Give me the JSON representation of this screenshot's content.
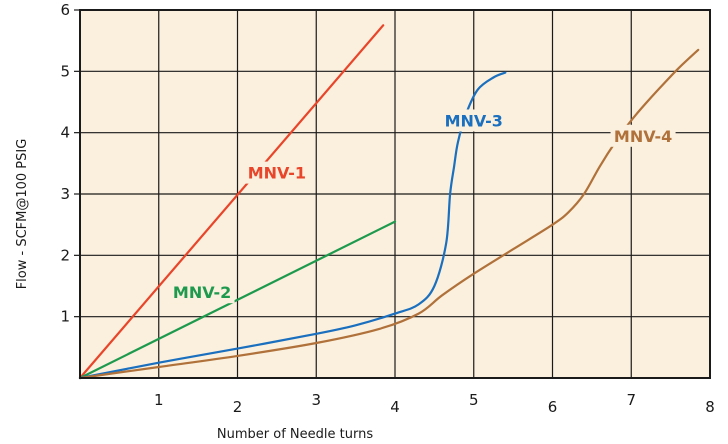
{
  "chart_data": {
    "type": "line",
    "title": "",
    "xlabel": "Number of Needle turns",
    "ylabel": "Flow - SCFM@100 PSIG",
    "xlim": [
      0,
      8
    ],
    "ylim": [
      0,
      6
    ],
    "x_ticks": [
      "1",
      "2",
      "3",
      "4",
      "5",
      "6",
      "7",
      "8"
    ],
    "y_ticks": [
      "1",
      "2",
      "3",
      "4",
      "5",
      "6"
    ],
    "grid": true,
    "background": "#fbf0dd",
    "series": [
      {
        "name": "MNV-1",
        "color": "#e8452a",
        "x": [
          0,
          3.85
        ],
        "y": [
          0,
          5.75
        ]
      },
      {
        "name": "MNV-2",
        "color": "#1e9a4e",
        "x": [
          0,
          4.0
        ],
        "y": [
          0,
          2.55
        ]
      },
      {
        "name": "MNV-3",
        "color": "#1a6fbf",
        "x": [
          0,
          1.0,
          2.0,
          3.0,
          3.5,
          4.0,
          4.3,
          4.5,
          4.65,
          4.7,
          4.75,
          4.8,
          4.9,
          5.05,
          5.25,
          5.4
        ],
        "y": [
          0,
          0.25,
          0.48,
          0.72,
          0.86,
          1.05,
          1.2,
          1.5,
          2.2,
          3.0,
          3.45,
          3.85,
          4.3,
          4.7,
          4.9,
          4.98
        ]
      },
      {
        "name": "MNV-4",
        "color": "#b0713a",
        "x": [
          0,
          1.0,
          2.0,
          3.0,
          3.8,
          4.3,
          4.6,
          5.0,
          5.5,
          6.0,
          6.2,
          6.4,
          6.6,
          6.8,
          7.0,
          7.2,
          7.4,
          7.6,
          7.85
        ],
        "y": [
          0,
          0.18,
          0.36,
          0.57,
          0.8,
          1.05,
          1.35,
          1.7,
          2.1,
          2.5,
          2.7,
          3.0,
          3.45,
          3.85,
          4.2,
          4.5,
          4.78,
          5.05,
          5.35
        ]
      }
    ]
  }
}
